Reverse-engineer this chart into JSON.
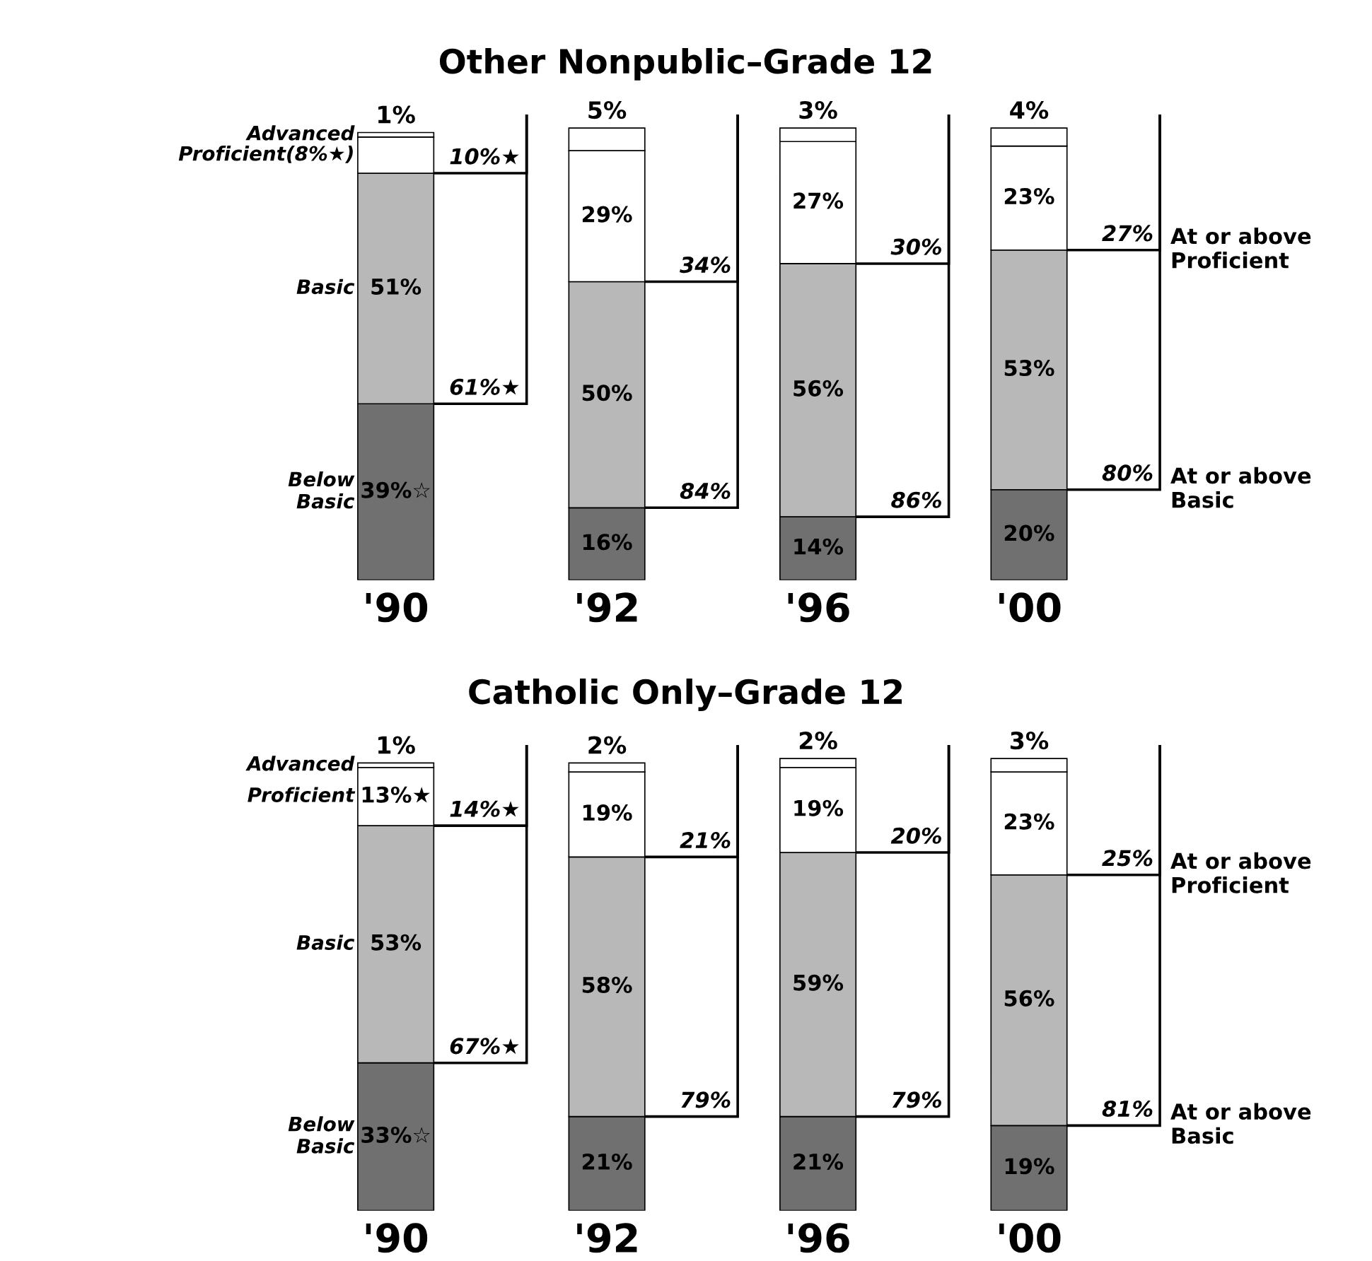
{
  "chart_data": [
    {
      "type": "bar",
      "stacked": true,
      "title": "Other Nonpublic–Grade 12",
      "categories": [
        "'90",
        "'92",
        "'96",
        "'00"
      ],
      "tick_labels": "x",
      "grid": false,
      "legend": "left",
      "series": [
        {
          "name": "Below\nBasic",
          "color": "#707070",
          "values": [
            39,
            16,
            14,
            20
          ],
          "value_labels": [
            "39%☆",
            "16%",
            "14%",
            "20%"
          ]
        },
        {
          "name": "Basic",
          "color": "#b8b8b8",
          "values": [
            51,
            50,
            56,
            53
          ],
          "value_labels": [
            "51%",
            "50%",
            "56%",
            "53%"
          ]
        },
        {
          "name": "Proficient(8%★)",
          "color": "#ffffff",
          "values": [
            8,
            29,
            27,
            23
          ],
          "value_labels": [
            null,
            "29%",
            "27%",
            "23%"
          ]
        },
        {
          "name": "Advanced",
          "color": "#ffffff",
          "values": [
            1,
            5,
            3,
            4
          ],
          "value_labels": [
            "1%",
            "5%",
            "3%",
            "4%"
          ]
        }
      ],
      "annotations": [
        "10%★",
        "61%★",
        "34%",
        "84%",
        "30%",
        "86%",
        "27%",
        "80%",
        "At or above\nProficient",
        "At or above\nBasic"
      ]
    },
    {
      "type": "bar",
      "stacked": true,
      "title": "Catholic Only–Grade 12",
      "categories": [
        "'90",
        "'92",
        "'96",
        "'00"
      ],
      "tick_labels": "x",
      "grid": false,
      "legend": "left",
      "series": [
        {
          "name": "Below\nBasic",
          "color": "#707070",
          "values": [
            33,
            21,
            21,
            19
          ],
          "value_labels": [
            "33%☆",
            "21%",
            "21%",
            "19%"
          ]
        },
        {
          "name": "Basic",
          "color": "#b8b8b8",
          "values": [
            53,
            58,
            59,
            56
          ],
          "value_labels": [
            "53%",
            "58%",
            "59%",
            "56%"
          ]
        },
        {
          "name": "Proficient",
          "color": "#ffffff",
          "values": [
            13,
            19,
            19,
            23
          ],
          "value_labels": [
            "13%★",
            "19%",
            "19%",
            "23%"
          ]
        },
        {
          "name": "Advanced",
          "color": "#ffffff",
          "values": [
            1,
            2,
            2,
            3
          ],
          "value_labels": [
            "1%",
            "2%",
            "2%",
            "3%"
          ]
        }
      ],
      "annotations": [
        "14%★",
        "67%★",
        "21%",
        "79%",
        "20%",
        "79%",
        "25%",
        "81%",
        "At or above\nProficient",
        "At or above\nBasic"
      ]
    }
  ]
}
